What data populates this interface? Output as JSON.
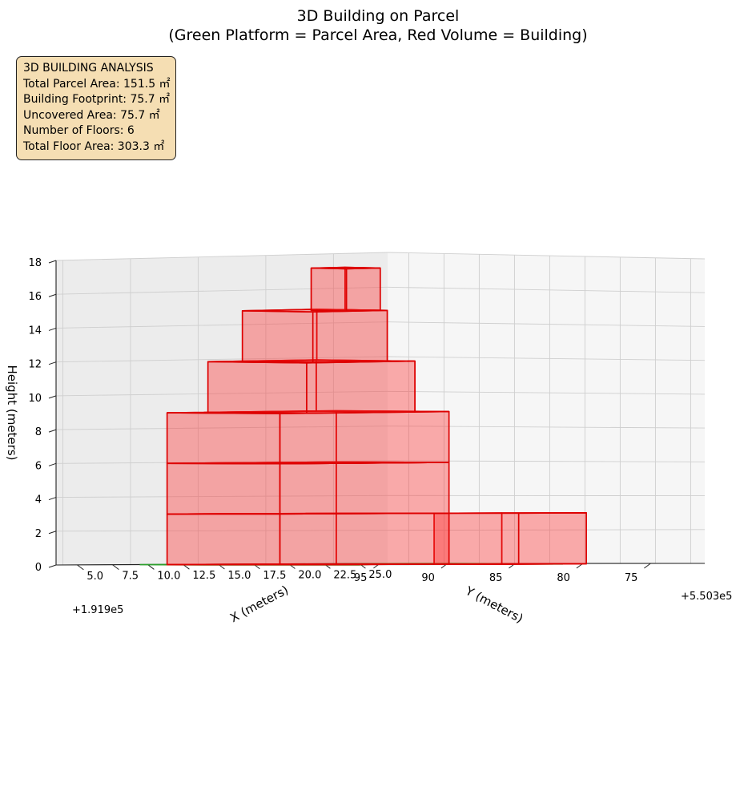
{
  "chart_data": {
    "type": "3d-polygons",
    "title": "3D Building on Parcel",
    "subtitle": "(Green Platform = Parcel Area, Red Volume = Building)",
    "xlabel": "X (meters)",
    "ylabel": "Y (meters)",
    "zlabel": "Height (meters)",
    "x_offset_label": "+1.919e5",
    "y_offset_label": "+5.503e5",
    "x_ticks": [
      "5.0",
      "7.5",
      "10.0",
      "12.5",
      "15.0",
      "17.5",
      "20.0",
      "22.5",
      "25.0"
    ],
    "y_ticks": [
      "75",
      "80",
      "85",
      "90",
      "95"
    ],
    "z_ticks": [
      "0",
      "2",
      "4",
      "6",
      "8",
      "10",
      "12",
      "14",
      "16",
      "18"
    ],
    "xlim": [
      3.5,
      26
    ],
    "ylim": [
      71,
      95.5
    ],
    "zlim": [
      0,
      18
    ],
    "grid": true,
    "colors": {
      "parcel": "#2ca02c",
      "parcel_fill": "#c8ecc8",
      "building": "#dd0000",
      "building_fill": "#ff3030"
    },
    "parcel_polygon": [
      [
        3.0,
        72.6
      ],
      [
        13.4,
        82.4
      ],
      [
        16.9,
        72.0
      ],
      [
        26.0,
        90.0
      ],
      [
        8.0,
        94.0
      ],
      [
        4.0,
        85.0
      ]
    ],
    "building_blocks": [
      {
        "x": [
          14.0,
          20.0
        ],
        "y": [
          73.5,
          78.5
        ],
        "z": [
          0,
          3
        ]
      },
      {
        "x": [
          8.5,
          16.5
        ],
        "y": [
          80.0,
          92.5
        ],
        "z": [
          0,
          3
        ]
      },
      {
        "x": [
          8.5,
          16.5
        ],
        "y": [
          80.0,
          92.5
        ],
        "z": [
          3,
          6
        ]
      },
      {
        "x": [
          8.5,
          16.5
        ],
        "y": [
          80.0,
          92.5
        ],
        "z": [
          6,
          9
        ]
      },
      {
        "x": [
          9.0,
          16.0
        ],
        "y": [
          82.0,
          90.0
        ],
        "z": [
          9,
          12
        ]
      },
      {
        "x": [
          10.0,
          15.0
        ],
        "y": [
          83.0,
          88.5
        ],
        "z": [
          12,
          15
        ]
      },
      {
        "x": [
          12.0,
          14.5
        ],
        "y": [
          83.0,
          85.5
        ],
        "z": [
          15,
          17.5
        ]
      }
    ]
  },
  "info": {
    "heading": "3D BUILDING ANALYSIS",
    "total_parcel_area": "Total Parcel Area: 151.5 ㎡",
    "building_footprint": "Building Footprint: 75.7 ㎡",
    "uncovered_area": "Uncovered Area: 75.7 ㎡",
    "number_of_floors": "Number of Floors: 6",
    "total_floor_area": "Total Floor Area: 303.3 ㎡"
  }
}
